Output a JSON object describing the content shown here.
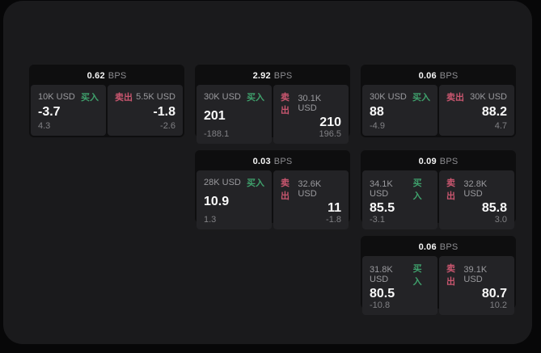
{
  "theme": {
    "outer_bg": "#070708",
    "panel_bg": "#1a1a1c",
    "card_bg": "#0e0e0f",
    "tile_bg": "#232326",
    "text_primary": "#fafafa",
    "text_muted": "#8d8d91",
    "buy_color": "#3fa06c",
    "sell_color": "#c9566f"
  },
  "labels": {
    "bps_unit": "BPS",
    "buy": "买入",
    "sell": "卖出"
  },
  "cards": [
    {
      "row": 1,
      "col": 1,
      "bps": "0.62",
      "buy": {
        "size": "10K USD",
        "price": "-3.7",
        "delta": "4.3"
      },
      "sell": {
        "size": "5.5K USD",
        "price": "-1.8",
        "delta": "-2.6"
      }
    },
    {
      "row": 1,
      "col": 2,
      "bps": "2.92",
      "buy": {
        "size": "30K USD",
        "price": "201",
        "delta": "-188.1"
      },
      "sell": {
        "size": "30.1K USD",
        "price": "210",
        "delta": "196.5"
      }
    },
    {
      "row": 1,
      "col": 3,
      "bps": "0.06",
      "buy": {
        "size": "30K USD",
        "price": "88",
        "delta": "-4.9"
      },
      "sell": {
        "size": "30K USD",
        "price": "88.2",
        "delta": "4.7"
      }
    },
    {
      "row": 2,
      "col": 2,
      "bps": "0.03",
      "buy": {
        "size": "28K USD",
        "price": "10.9",
        "delta": "1.3"
      },
      "sell": {
        "size": "32.6K USD",
        "price": "11",
        "delta": "-1.8"
      }
    },
    {
      "row": 2,
      "col": 3,
      "bps": "0.09",
      "buy": {
        "size": "34.1K USD",
        "price": "85.5",
        "delta": "-3.1"
      },
      "sell": {
        "size": "32.8K USD",
        "price": "85.8",
        "delta": "3.0"
      }
    },
    {
      "row": 3,
      "col": 3,
      "bps": "0.06",
      "buy": {
        "size": "31.8K USD",
        "price": "80.5",
        "delta": "-10.8"
      },
      "sell": {
        "size": "39.1K USD",
        "price": "80.7",
        "delta": "10.2"
      }
    }
  ]
}
